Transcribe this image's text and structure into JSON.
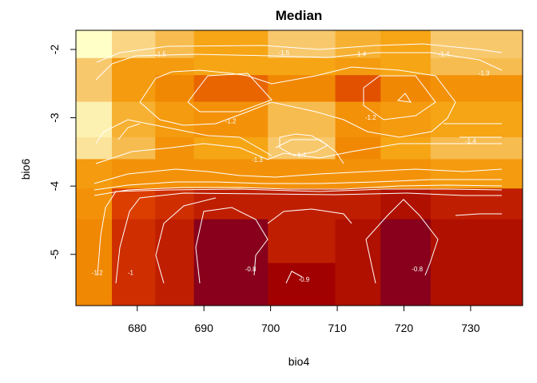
{
  "chart_data": {
    "type": "heatmap",
    "title": "Median",
    "xlabel": "bio4",
    "ylabel": "bio6",
    "xlim": [
      670.8,
      737.8
    ],
    "ylim": [
      -5.75,
      -1.72
    ],
    "x_ticks": [
      680,
      690,
      700,
      710,
      720,
      730
    ],
    "y_ticks": [
      -2,
      -3,
      -4,
      -5
    ],
    "x_edges": [
      670.8,
      676.2,
      682.7,
      688.5,
      699.6,
      709.7,
      716.5,
      724.0,
      737.8
    ],
    "y_edges": [
      -5.75,
      -5.12,
      -4.48,
      -4.03,
      -3.6,
      -3.28,
      -2.76,
      -2.37,
      -2.12,
      -1.72
    ],
    "value_range": [
      -1.8,
      -0.7
    ],
    "cells": [
      [
        -1.3,
        -1.05,
        -1.0,
        -0.75,
        -0.9,
        -0.95,
        -0.75,
        -0.95
      ],
      [
        -1.3,
        -1.05,
        -1.0,
        -0.75,
        -1.0,
        -0.95,
        -0.75,
        -0.95
      ],
      [
        -1.35,
        -1.1,
        -1.05,
        -1.0,
        -1.0,
        -1.0,
        -0.95,
        -1.0
      ],
      [
        -1.4,
        -1.35,
        -1.35,
        -1.35,
        -1.35,
        -1.35,
        -1.35,
        -1.4
      ],
      [
        -1.7,
        -1.55,
        -1.35,
        -1.45,
        -1.6,
        -1.3,
        -1.45,
        -1.55
      ],
      [
        -1.75,
        -1.5,
        -1.4,
        -1.35,
        -1.55,
        -1.35,
        -1.4,
        -1.45
      ],
      [
        -1.6,
        -1.4,
        -1.3,
        -1.2,
        -1.3,
        -1.15,
        -1.3,
        -1.35
      ],
      [
        -1.6,
        -1.4,
        -1.4,
        -1.45,
        -1.45,
        -1.4,
        -1.45,
        -1.55
      ],
      [
        -1.8,
        -1.65,
        -1.55,
        -1.45,
        -1.6,
        -1.5,
        -1.45,
        -1.6
      ]
    ],
    "contour_labels": [
      {
        "text": "-1.5",
        "x": 683.5,
        "y": -2.1
      },
      {
        "text": "-1.5",
        "x": 702,
        "y": -2.08
      },
      {
        "text": "-1.4",
        "x": 713.5,
        "y": -2.1
      },
      {
        "text": "-1.4",
        "x": 726,
        "y": -2.1
      },
      {
        "text": "-1.3",
        "x": 732,
        "y": -2.38
      },
      {
        "text": "-1.2",
        "x": 694,
        "y": -3.08
      },
      {
        "text": "-1.2",
        "x": 715,
        "y": -3.03
      },
      {
        "text": "-1.4",
        "x": 704.5,
        "y": -3.58
      },
      {
        "text": "-1.3",
        "x": 698,
        "y": -3.65
      },
      {
        "text": "-1.4",
        "x": 730,
        "y": -3.37
      },
      {
        "text": "-1.2",
        "x": 674,
        "y": -5.3
      },
      {
        "text": "-1",
        "x": 679,
        "y": -5.3
      },
      {
        "text": "-0.8",
        "x": 697,
        "y": -5.25
      },
      {
        "text": "-0.9",
        "x": 705,
        "y": -5.4
      },
      {
        "text": "-0.8",
        "x": 722,
        "y": -5.25
      }
    ],
    "grid": false,
    "legend": "none"
  }
}
